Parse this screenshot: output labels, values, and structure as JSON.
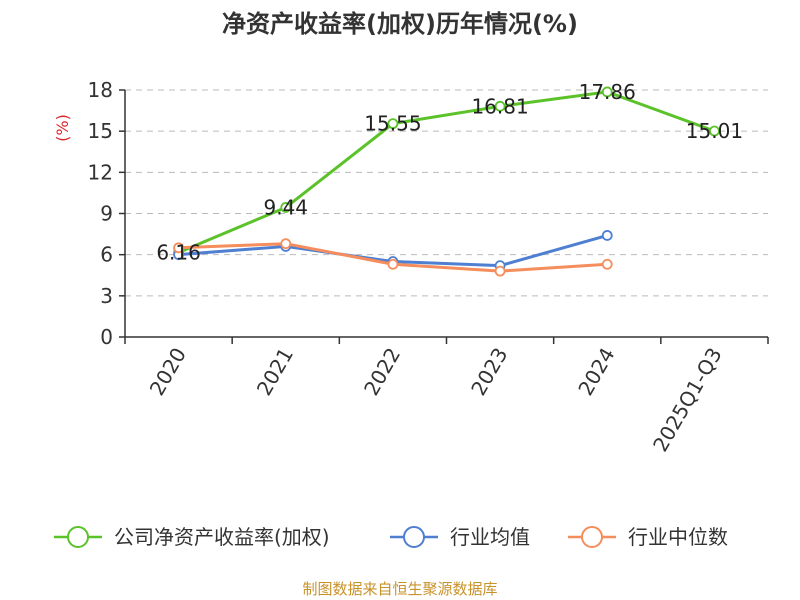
{
  "chart_data": {
    "type": "line",
    "title": "净资产收益率(加权)历年情况(%)",
    "ylabel": "(%)",
    "categories": [
      "2020",
      "2021",
      "2022",
      "2023",
      "2024",
      "2025Q1-Q3"
    ],
    "yticks": [
      0,
      3,
      6,
      9,
      12,
      15,
      18
    ],
    "ylim": [
      0,
      18
    ],
    "grid": true,
    "legend_position": "bottom",
    "series": [
      {
        "name": "公司净资产收益率(加权)",
        "color": "#5bc22a",
        "values": [
          6.16,
          9.44,
          15.55,
          16.81,
          17.86,
          15.01
        ],
        "labels": [
          "6.16",
          "9.44",
          "15.55",
          "16.81",
          "17.86",
          "15.01"
        ]
      },
      {
        "name": "行业均值",
        "color": "#4f7fd1",
        "values": [
          6.0,
          6.6,
          5.5,
          5.2,
          7.4,
          null
        ]
      },
      {
        "name": "行业中位数",
        "color": "#f58d5c",
        "values": [
          6.5,
          6.8,
          5.3,
          4.8,
          5.3,
          null
        ]
      }
    ]
  },
  "footer": {
    "source": "制图数据来自恒生聚源数据库"
  }
}
